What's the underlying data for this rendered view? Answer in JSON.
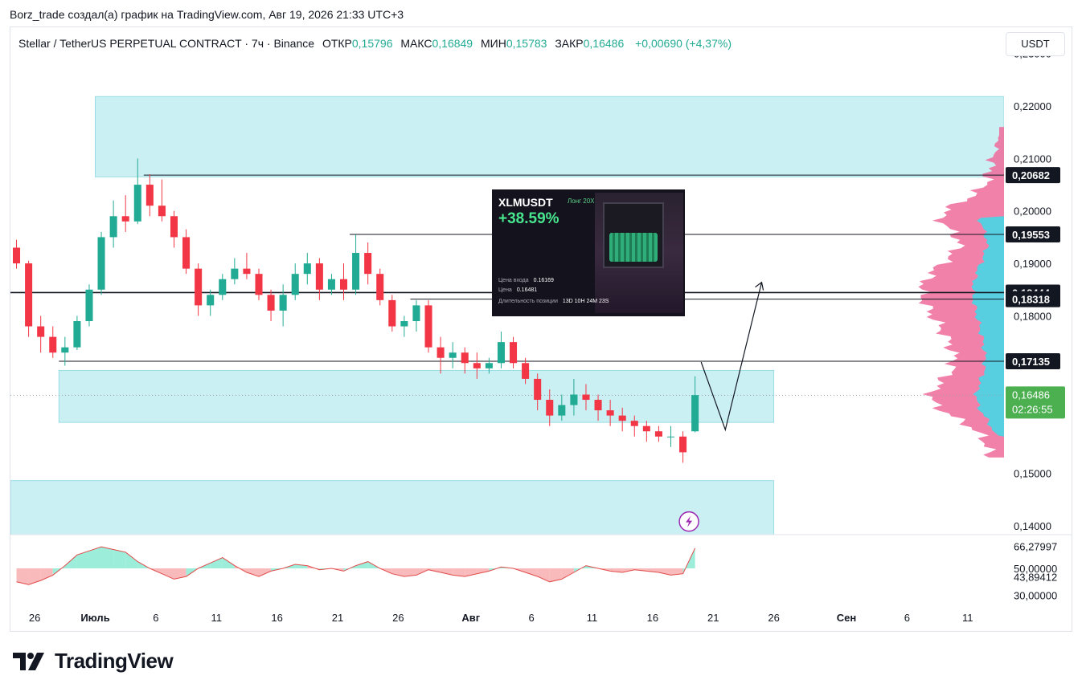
{
  "caption": "Borz_trade создал(а) график на TradingView.com, Авг 19, 2026 21:33 UTC+3",
  "header": {
    "title": "Stellar / TetherUS PERPETUAL CONTRACT · 7ч · Binance",
    "open_label": "ОТКР",
    "open": "0,15796",
    "high_label": "МАКС",
    "high": "0,16849",
    "low_label": "МИН",
    "low": "0,15783",
    "close_label": "ЗАКР",
    "close": "0,16486",
    "change": "+0,00690 (+4,37%)",
    "currency_button": "USDT"
  },
  "colors": {
    "up": "#22ab94",
    "down": "#f23645",
    "zone": "#c6eff3",
    "zone_border": "#8ed9e3",
    "profile_pink": "#ef6b9a",
    "profile_blue": "#4fd2e4",
    "osc_green": "#7be8cf",
    "osc_red": "#f5a3a3"
  },
  "trade_card": {
    "symbol": "XLMUSDT",
    "side": "Лонг 20X",
    "pnl": "+38.59%",
    "entry_label": "Цена входа",
    "entry": "0.16169",
    "price_label": "Цена",
    "price": "0.16481",
    "duration_label": "Длительность позиции",
    "duration": "13D 10H 24M 23S"
  },
  "chart_data": {
    "type": "candlestick",
    "symbol": "XLMUSDT",
    "interval": "7ч",
    "y_axis": {
      "ticks": [
        "0,23000",
        "0,22000",
        "0,21000",
        "0,20000",
        "0,19000",
        "0,18000",
        "0,15000",
        "0,14000"
      ],
      "ylim": [
        0.1383,
        0.235
      ]
    },
    "price_labels": [
      {
        "text": "0,20682",
        "value": 0.20682
      },
      {
        "text": "0,19553",
        "value": 0.19553
      },
      {
        "text": "0,18444",
        "value": 0.18444
      },
      {
        "text": "0,18318",
        "value": 0.18318
      },
      {
        "text": "0,17135",
        "value": 0.17135
      }
    ],
    "last_price": {
      "text": "0,16486",
      "value": 0.16486,
      "countdown": "02:26:55"
    },
    "x_axis": {
      "ticks": [
        "26",
        "Июль",
        "6",
        "11",
        "16",
        "21",
        "26",
        "Авг",
        "6",
        "11",
        "16",
        "21",
        "26",
        "Сен",
        "6",
        "11"
      ],
      "range": [
        "2026-06-24",
        "2026-09-14"
      ]
    },
    "zones": [
      {
        "x_from": "2026-07-01",
        "x_to": "2026-09-14",
        "y_from": 0.2065,
        "y_to": 0.2218
      },
      {
        "x_from": "2026-06-28",
        "x_to": "2026-08-26",
        "y_from": 0.1597,
        "y_to": 0.1696
      },
      {
        "x_from": "2026-06-24",
        "x_to": "2026-08-26",
        "y_from": 0.1383,
        "y_to": 0.1486
      }
    ],
    "projection": [
      {
        "date": "2026-08-20",
        "price": 0.1712
      },
      {
        "date": "2026-08-22",
        "price": 0.1583
      },
      {
        "date": "2026-08-25",
        "price": 0.1864
      }
    ],
    "candles": [
      {
        "date": "2026-06-24",
        "o": 0.193,
        "h": 0.1945,
        "l": 0.189,
        "c": 0.19
      },
      {
        "date": "2026-06-25",
        "o": 0.19,
        "h": 0.1905,
        "l": 0.176,
        "c": 0.178
      },
      {
        "date": "2026-06-26",
        "o": 0.178,
        "h": 0.18,
        "l": 0.173,
        "c": 0.176
      },
      {
        "date": "2026-06-27",
        "o": 0.176,
        "h": 0.178,
        "l": 0.172,
        "c": 0.173
      },
      {
        "date": "2026-06-28",
        "o": 0.173,
        "h": 0.176,
        "l": 0.1705,
        "c": 0.174
      },
      {
        "date": "2026-06-29",
        "o": 0.174,
        "h": 0.18,
        "l": 0.1735,
        "c": 0.179
      },
      {
        "date": "2026-06-30",
        "o": 0.179,
        "h": 0.186,
        "l": 0.178,
        "c": 0.185
      },
      {
        "date": "2026-07-01",
        "o": 0.185,
        "h": 0.196,
        "l": 0.184,
        "c": 0.195
      },
      {
        "date": "2026-07-02",
        "o": 0.195,
        "h": 0.202,
        "l": 0.193,
        "c": 0.199
      },
      {
        "date": "2026-07-03",
        "o": 0.199,
        "h": 0.203,
        "l": 0.196,
        "c": 0.198
      },
      {
        "date": "2026-07-04",
        "o": 0.198,
        "h": 0.21,
        "l": 0.1975,
        "c": 0.205
      },
      {
        "date": "2026-07-05",
        "o": 0.205,
        "h": 0.207,
        "l": 0.199,
        "c": 0.201
      },
      {
        "date": "2026-07-06",
        "o": 0.201,
        "h": 0.206,
        "l": 0.198,
        "c": 0.199
      },
      {
        "date": "2026-07-07",
        "o": 0.199,
        "h": 0.2,
        "l": 0.193,
        "c": 0.195
      },
      {
        "date": "2026-07-08",
        "o": 0.195,
        "h": 0.1965,
        "l": 0.188,
        "c": 0.189
      },
      {
        "date": "2026-07-09",
        "o": 0.189,
        "h": 0.19,
        "l": 0.18,
        "c": 0.182
      },
      {
        "date": "2026-07-10",
        "o": 0.182,
        "h": 0.185,
        "l": 0.18,
        "c": 0.184
      },
      {
        "date": "2026-07-11",
        "o": 0.184,
        "h": 0.188,
        "l": 0.183,
        "c": 0.187
      },
      {
        "date": "2026-07-12",
        "o": 0.187,
        "h": 0.191,
        "l": 0.186,
        "c": 0.189
      },
      {
        "date": "2026-07-13",
        "o": 0.189,
        "h": 0.192,
        "l": 0.187,
        "c": 0.188
      },
      {
        "date": "2026-07-14",
        "o": 0.188,
        "h": 0.189,
        "l": 0.183,
        "c": 0.184
      },
      {
        "date": "2026-07-15",
        "o": 0.184,
        "h": 0.185,
        "l": 0.179,
        "c": 0.181
      },
      {
        "date": "2026-07-16",
        "o": 0.181,
        "h": 0.186,
        "l": 0.178,
        "c": 0.184
      },
      {
        "date": "2026-07-17",
        "o": 0.184,
        "h": 0.19,
        "l": 0.183,
        "c": 0.188
      },
      {
        "date": "2026-07-18",
        "o": 0.188,
        "h": 0.192,
        "l": 0.186,
        "c": 0.19
      },
      {
        "date": "2026-07-19",
        "o": 0.19,
        "h": 0.191,
        "l": 0.183,
        "c": 0.185
      },
      {
        "date": "2026-07-20",
        "o": 0.185,
        "h": 0.188,
        "l": 0.184,
        "c": 0.187
      },
      {
        "date": "2026-07-21",
        "o": 0.187,
        "h": 0.19,
        "l": 0.183,
        "c": 0.185
      },
      {
        "date": "2026-07-22",
        "o": 0.185,
        "h": 0.1955,
        "l": 0.184,
        "c": 0.192
      },
      {
        "date": "2026-07-23",
        "o": 0.192,
        "h": 0.194,
        "l": 0.186,
        "c": 0.188
      },
      {
        "date": "2026-07-24",
        "o": 0.188,
        "h": 0.189,
        "l": 0.182,
        "c": 0.183
      },
      {
        "date": "2026-07-25",
        "o": 0.183,
        "h": 0.184,
        "l": 0.177,
        "c": 0.178
      },
      {
        "date": "2026-07-26",
        "o": 0.178,
        "h": 0.18,
        "l": 0.176,
        "c": 0.179
      },
      {
        "date": "2026-07-27",
        "o": 0.179,
        "h": 0.183,
        "l": 0.177,
        "c": 0.182
      },
      {
        "date": "2026-07-28",
        "o": 0.182,
        "h": 0.183,
        "l": 0.173,
        "c": 0.174
      },
      {
        "date": "2026-07-29",
        "o": 0.174,
        "h": 0.176,
        "l": 0.169,
        "c": 0.172
      },
      {
        "date": "2026-07-30",
        "o": 0.172,
        "h": 0.175,
        "l": 0.17,
        "c": 0.173
      },
      {
        "date": "2026-07-31",
        "o": 0.173,
        "h": 0.174,
        "l": 0.169,
        "c": 0.171
      },
      {
        "date": "2026-08-01",
        "o": 0.171,
        "h": 0.173,
        "l": 0.168,
        "c": 0.17
      },
      {
        "date": "2026-08-02",
        "o": 0.17,
        "h": 0.172,
        "l": 0.169,
        "c": 0.171
      },
      {
        "date": "2026-08-03",
        "o": 0.171,
        "h": 0.177,
        "l": 0.17,
        "c": 0.175
      },
      {
        "date": "2026-08-04",
        "o": 0.175,
        "h": 0.176,
        "l": 0.17,
        "c": 0.171
      },
      {
        "date": "2026-08-05",
        "o": 0.171,
        "h": 0.172,
        "l": 0.167,
        "c": 0.168
      },
      {
        "date": "2026-08-06",
        "o": 0.168,
        "h": 0.169,
        "l": 0.162,
        "c": 0.164
      },
      {
        "date": "2026-08-07",
        "o": 0.164,
        "h": 0.166,
        "l": 0.159,
        "c": 0.161
      },
      {
        "date": "2026-08-08",
        "o": 0.161,
        "h": 0.165,
        "l": 0.16,
        "c": 0.163
      },
      {
        "date": "2026-08-09",
        "o": 0.163,
        "h": 0.168,
        "l": 0.161,
        "c": 0.165
      },
      {
        "date": "2026-08-10",
        "o": 0.165,
        "h": 0.167,
        "l": 0.162,
        "c": 0.164
      },
      {
        "date": "2026-08-11",
        "o": 0.164,
        "h": 0.165,
        "l": 0.16,
        "c": 0.162
      },
      {
        "date": "2026-08-12",
        "o": 0.162,
        "h": 0.164,
        "l": 0.159,
        "c": 0.161
      },
      {
        "date": "2026-08-13",
        "o": 0.161,
        "h": 0.1625,
        "l": 0.158,
        "c": 0.16
      },
      {
        "date": "2026-08-14",
        "o": 0.16,
        "h": 0.161,
        "l": 0.157,
        "c": 0.159
      },
      {
        "date": "2026-08-15",
        "o": 0.159,
        "h": 0.16,
        "l": 0.156,
        "c": 0.158
      },
      {
        "date": "2026-08-16",
        "o": 0.158,
        "h": 0.159,
        "l": 0.156,
        "c": 0.157
      },
      {
        "date": "2026-08-17",
        "o": 0.157,
        "h": 0.159,
        "l": 0.155,
        "c": 0.157
      },
      {
        "date": "2026-08-18",
        "o": 0.157,
        "h": 0.158,
        "l": 0.152,
        "c": 0.154
      },
      {
        "date": "2026-08-19",
        "o": 0.158,
        "h": 0.1685,
        "l": 0.1578,
        "c": 0.1649
      }
    ],
    "volume_profile": {
      "price_range": [
        0.153,
        0.216
      ],
      "value_area": [
        0.157,
        0.199
      ]
    },
    "oscillator": {
      "tick_labels": [
        "66,27997",
        "50,00000",
        "43,89412",
        "30,00000"
      ],
      "values": [
        40,
        38,
        41,
        45,
        52,
        60,
        63,
        66,
        64,
        62,
        55,
        50,
        46,
        42,
        44,
        50,
        54,
        58,
        52,
        47,
        44,
        48,
        50,
        53,
        52,
        49,
        50,
        48,
        52,
        55,
        50,
        46,
        44,
        45,
        49,
        47,
        45,
        44,
        46,
        48,
        51,
        50,
        47,
        44,
        40,
        42,
        47,
        52,
        50,
        48,
        47,
        49,
        48,
        47,
        45,
        46,
        65
      ]
    }
  }
}
